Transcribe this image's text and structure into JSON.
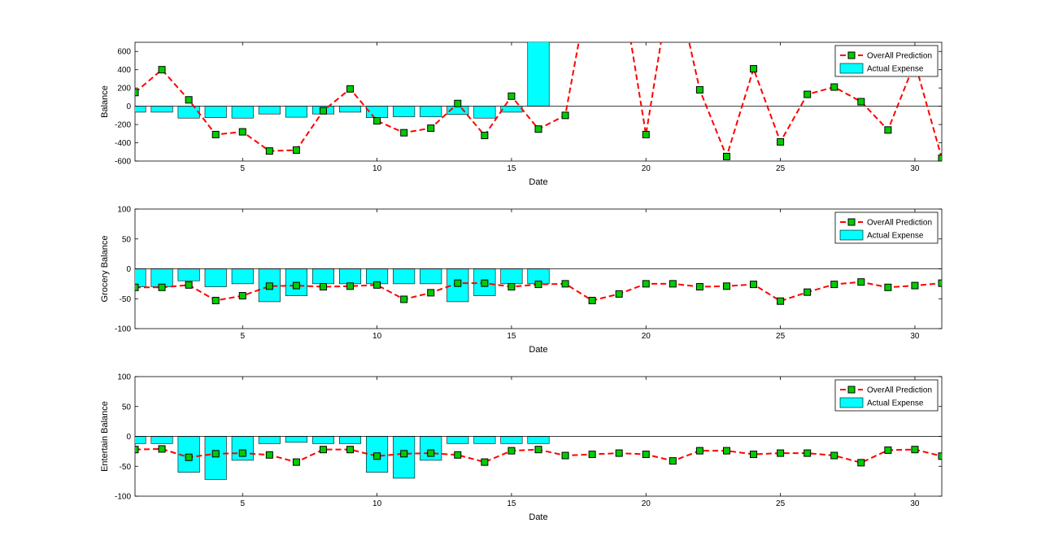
{
  "colors": {
    "background": "#ffffff",
    "bar_fill": "#00ffff",
    "bar_stroke": "#000000",
    "line": "#ff0000",
    "marker_fill": "#00cc00",
    "marker_stroke": "#000000",
    "axis": "#000000"
  },
  "chart_data": [
    {
      "type": "bar+line",
      "xlabel": "Date",
      "ylabel": "Balance",
      "xlim": [
        1,
        31
      ],
      "ylim": [
        -600,
        700
      ],
      "xticks": [
        5,
        10,
        15,
        20,
        25,
        30
      ],
      "yticks": [
        -600,
        -400,
        -200,
        0,
        200,
        400,
        600
      ],
      "legend_location": "top-right",
      "legend": [
        "OverAll Prediction",
        "Actual Expense"
      ],
      "bars": {
        "name": "Actual Expense",
        "x": [
          1,
          2,
          3,
          4,
          5,
          6,
          7,
          8,
          9,
          10,
          11,
          12,
          13,
          14,
          15,
          16
        ],
        "values": [
          -65,
          -65,
          -130,
          -125,
          -130,
          -85,
          -120,
          -85,
          -65,
          -125,
          -115,
          -115,
          -90,
          -130,
          -65,
          800
        ]
      },
      "line": {
        "name": "OverAll Prediction",
        "x": [
          1,
          2,
          3,
          4,
          5,
          6,
          7,
          8,
          9,
          10,
          11,
          12,
          13,
          14,
          15,
          16,
          17,
          18,
          19,
          20,
          21,
          22,
          23,
          24,
          25,
          26,
          27,
          28,
          29,
          30,
          31
        ],
        "values": [
          150,
          400,
          70,
          -310,
          -280,
          -490,
          -480,
          -50,
          190,
          -160,
          -290,
          -240,
          30,
          -320,
          110,
          -250,
          -100,
          1500,
          1500,
          -310,
          1500,
          180,
          -550,
          410,
          -390,
          130,
          210,
          50,
          -260,
          480,
          -570
        ]
      }
    },
    {
      "type": "bar+line",
      "xlabel": "Date",
      "ylabel": "Grocery Balance",
      "xlim": [
        1,
        31
      ],
      "ylim": [
        -100,
        100
      ],
      "xticks": [
        5,
        10,
        15,
        20,
        25,
        30
      ],
      "yticks": [
        -100,
        -50,
        0,
        50,
        100
      ],
      "legend_location": "top-right",
      "legend": [
        "OverAll Prediction",
        "Actual Expense"
      ],
      "bars": {
        "name": "Actual Expense",
        "x": [
          1,
          2,
          3,
          4,
          5,
          6,
          7,
          8,
          9,
          10,
          11,
          12,
          13,
          14,
          15,
          16
        ],
        "values": [
          -30,
          -30,
          -20,
          -30,
          -25,
          -55,
          -45,
          -25,
          -25,
          -25,
          -25,
          -25,
          -55,
          -45,
          -25,
          -25
        ]
      },
      "line": {
        "name": "OverAll Prediction",
        "x": [
          1,
          2,
          3,
          4,
          5,
          6,
          7,
          8,
          9,
          10,
          11,
          12,
          13,
          14,
          15,
          16,
          17,
          18,
          19,
          20,
          21,
          22,
          23,
          24,
          25,
          26,
          27,
          28,
          29,
          30,
          31
        ],
        "values": [
          -31,
          -31,
          -27,
          -53,
          -45,
          -29,
          -28,
          -30,
          -29,
          -27,
          -51,
          -40,
          -24,
          -24,
          -30,
          -26,
          -25,
          -53,
          -42,
          -25,
          -25,
          -30,
          -29,
          -26,
          -54,
          -39,
          -26,
          -22,
          -31,
          -28,
          -24
        ]
      }
    },
    {
      "type": "bar+line",
      "xlabel": "Date",
      "ylabel": "Entertain Balance",
      "xlim": [
        1,
        31
      ],
      "ylim": [
        -100,
        100
      ],
      "xticks": [
        5,
        10,
        15,
        20,
        25,
        30
      ],
      "yticks": [
        -100,
        -50,
        0,
        50,
        100
      ],
      "legend_location": "top-right",
      "legend": [
        "OverAll Prediction",
        "Actual Expense"
      ],
      "bars": {
        "name": "Actual Expense",
        "x": [
          1,
          2,
          3,
          4,
          5,
          6,
          7,
          8,
          9,
          10,
          11,
          12,
          13,
          14,
          15,
          16
        ],
        "values": [
          -12,
          -12,
          -60,
          -72,
          -40,
          -12,
          -10,
          -12,
          -12,
          -60,
          -70,
          -40,
          -12,
          -12,
          -12,
          -12
        ]
      },
      "line": {
        "name": "OverAll Prediction",
        "x": [
          1,
          2,
          3,
          4,
          5,
          6,
          7,
          8,
          9,
          10,
          11,
          12,
          13,
          14,
          15,
          16,
          17,
          18,
          19,
          20,
          21,
          22,
          23,
          24,
          25,
          26,
          27,
          28,
          29,
          30,
          31
        ],
        "values": [
          -22,
          -21,
          -35,
          -29,
          -28,
          -31,
          -43,
          -22,
          -22,
          -33,
          -29,
          -28,
          -31,
          -43,
          -24,
          -22,
          -32,
          -30,
          -28,
          -30,
          -41,
          -24,
          -24,
          -30,
          -28,
          -28,
          -32,
          -44,
          -23,
          -22,
          -33
        ]
      }
    }
  ]
}
